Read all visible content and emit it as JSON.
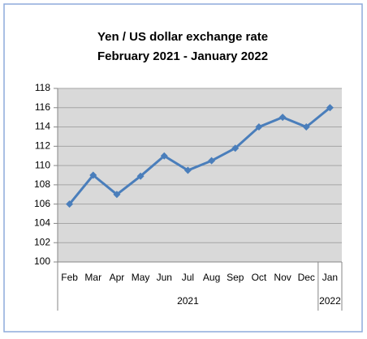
{
  "chart_data": {
    "type": "line",
    "title": "Yen / US dollar exchange rate",
    "subtitle": "February 2021  -  January 2022",
    "categories": [
      "Feb",
      "Mar",
      "Apr",
      "May",
      "Jun",
      "Jul",
      "Aug",
      "Sep",
      "Oct",
      "Nov",
      "Dec",
      "Jan"
    ],
    "category_groups": [
      {
        "label": "2021",
        "count": 11
      },
      {
        "label": "2022",
        "count": 1
      }
    ],
    "series": [
      {
        "name": "Yen per US dollar",
        "color": "#4a7ebb",
        "values": [
          106,
          109,
          107,
          108.9,
          111,
          109.5,
          110.5,
          111.8,
          114,
          115,
          114,
          116
        ]
      }
    ],
    "ylim": [
      100,
      118
    ],
    "yticks": [
      100,
      102,
      104,
      106,
      108,
      110,
      112,
      114,
      116,
      118
    ],
    "grid": true,
    "legend": false
  }
}
